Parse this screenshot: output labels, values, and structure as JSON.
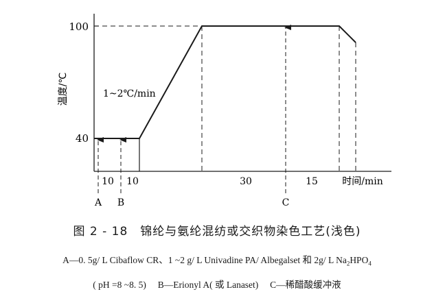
{
  "diagram": {
    "ylabel": "温度/℃",
    "y_ticks": [
      "100",
      "40"
    ],
    "rate_label": "1~2℃/min",
    "segment_labels": [
      "10",
      "10",
      "30",
      "15"
    ],
    "x_unit_label": "时间/min",
    "markers": [
      "A",
      "B",
      "C"
    ]
  },
  "caption": {
    "title": "图 2 - 18　锦纶与氨纶混纺或交织物染色工艺(浅色)",
    "line1_pre": "A—0. 5g/ L Cibaflow CR、1 ~2 g/ L Univadine PA/ Albegalset 和 2g/ L Na",
    "line1_sub1": "2",
    "line1_mid": "HPO",
    "line1_sub2": "4",
    "line2": "( pH =8 ~8. 5)　 B—Erionyl A( 或 Lanaset)　 C—稀醋酸缓冲液"
  },
  "chart_data": {
    "type": "line",
    "xlabel": "时间/min",
    "ylabel": "温度/℃",
    "y_ticks": [
      40,
      100
    ],
    "profile": [
      {
        "segment": "hold",
        "duration_min": 10,
        "temperature": 40,
        "label": "10"
      },
      {
        "segment": "hold",
        "duration_min": 10,
        "temperature": 40,
        "label": "10"
      },
      {
        "segment": "ramp",
        "from": 40,
        "to": 100,
        "rate": "1~2℃/min"
      },
      {
        "segment": "hold",
        "duration_min": 30,
        "temperature": 100,
        "label": "30"
      },
      {
        "segment": "hold",
        "duration_min": 15,
        "temperature": 100,
        "label": "15"
      },
      {
        "segment": "cool"
      }
    ],
    "additions": [
      "A",
      "B",
      "C"
    ]
  }
}
